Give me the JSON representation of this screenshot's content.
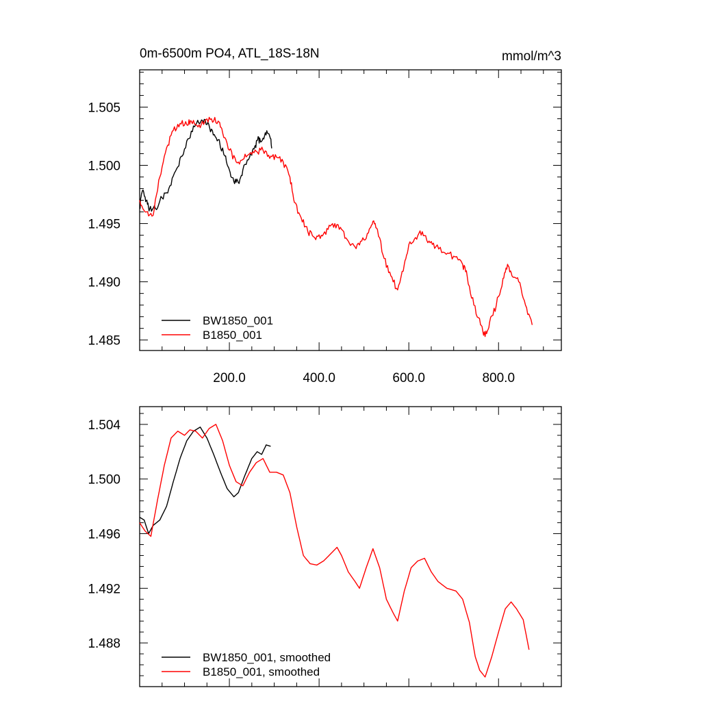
{
  "title_left": "0m-6500m PO4, ATL_18S-18N",
  "title_right": "mmol/m^3",
  "colors": {
    "bw": "#000000",
    "b": "#ff0000",
    "frame": "#000000"
  },
  "chart_data": [
    {
      "type": "line",
      "xlim": [
        0,
        940
      ],
      "ylim": [
        1.4841,
        1.5082
      ],
      "y_ticks": [
        "1.505",
        "1.500",
        "1.495",
        "1.490",
        "1.485"
      ],
      "y_tick_values": [
        1.505,
        1.5,
        1.495,
        1.49,
        1.485
      ],
      "x_ticks": [
        "200.0",
        "400.0",
        "600.0",
        "800.0"
      ],
      "x_tick_values": [
        200,
        400,
        600,
        800
      ],
      "grid": false,
      "legend": "bottom-left",
      "series": [
        {
          "name": "BW1850_001",
          "color": "#000000",
          "points": [
            [
              0,
              1.4963
            ],
            [
              6,
              1.4978
            ],
            [
              15,
              1.497
            ],
            [
              22,
              1.4962
            ],
            [
              35,
              1.4963
            ],
            [
              50,
              1.4972
            ],
            [
              65,
              1.498
            ],
            [
              80,
              1.4995
            ],
            [
              95,
              1.5008
            ],
            [
              110,
              1.5023
            ],
            [
              125,
              1.5035
            ],
            [
              138,
              1.5039
            ],
            [
              150,
              1.5035
            ],
            [
              162,
              1.503
            ],
            [
              175,
              1.5022
            ],
            [
              190,
              1.5008
            ],
            [
              200,
              1.4996
            ],
            [
              210,
              1.4986
            ],
            [
              220,
              1.4985
            ],
            [
              230,
              1.4996
            ],
            [
              245,
              1.5007
            ],
            [
              255,
              1.5014
            ],
            [
              263,
              1.5022
            ],
            [
              270,
              1.502
            ],
            [
              280,
              1.5028
            ],
            [
              290,
              1.5025
            ],
            [
              295,
              1.5015
            ]
          ]
        },
        {
          "name": "B1850_001",
          "color": "#ff0000",
          "points": [
            [
              0,
              1.497
            ],
            [
              15,
              1.496
            ],
            [
              30,
              1.4957
            ],
            [
              45,
              1.499
            ],
            [
              60,
              1.5015
            ],
            [
              75,
              1.503
            ],
            [
              90,
              1.5036
            ],
            [
              105,
              1.5035
            ],
            [
              115,
              1.5038
            ],
            [
              130,
              1.5033
            ],
            [
              145,
              1.5037
            ],
            [
              160,
              1.504
            ],
            [
              175,
              1.5038
            ],
            [
              185,
              1.5028
            ],
            [
              200,
              1.5013
            ],
            [
              215,
              1.5003
            ],
            [
              230,
              1.5005
            ],
            [
              245,
              1.501
            ],
            [
              260,
              1.5012
            ],
            [
              275,
              1.5013
            ],
            [
              290,
              1.5006
            ],
            [
              305,
              1.5007
            ],
            [
              320,
              1.5003
            ],
            [
              335,
              1.499
            ],
            [
              345,
              1.4968
            ],
            [
              360,
              1.4955
            ],
            [
              375,
              1.4943
            ],
            [
              390,
              1.4938
            ],
            [
              405,
              1.494
            ],
            [
              420,
              1.4945
            ],
            [
              435,
              1.495
            ],
            [
              450,
              1.4945
            ],
            [
              465,
              1.4935
            ],
            [
              480,
              1.493
            ],
            [
              495,
              1.4935
            ],
            [
              510,
              1.4942
            ],
            [
              520,
              1.4952
            ],
            [
              530,
              1.4945
            ],
            [
              545,
              1.492
            ],
            [
              560,
              1.4905
            ],
            [
              575,
              1.4893
            ],
            [
              590,
              1.4915
            ],
            [
              600,
              1.4932
            ],
            [
              615,
              1.4938
            ],
            [
              630,
              1.4943
            ],
            [
              645,
              1.4935
            ],
            [
              660,
              1.493
            ],
            [
              680,
              1.4925
            ],
            [
              700,
              1.4922
            ],
            [
              720,
              1.4915
            ],
            [
              730,
              1.4905
            ],
            [
              745,
              1.488
            ],
            [
              760,
              1.4863
            ],
            [
              770,
              1.4853
            ],
            [
              780,
              1.4865
            ],
            [
              795,
              1.488
            ],
            [
              810,
              1.4903
            ],
            [
              820,
              1.4915
            ],
            [
              830,
              1.4905
            ],
            [
              845,
              1.49
            ],
            [
              860,
              1.488
            ],
            [
              875,
              1.4863
            ]
          ]
        }
      ]
    },
    {
      "type": "line",
      "xlim": [
        0,
        940
      ],
      "ylim": [
        1.4848,
        1.5053
      ],
      "y_ticks": [
        "1.504",
        "1.500",
        "1.496",
        "1.492",
        "1.488"
      ],
      "y_tick_values": [
        1.504,
        1.5,
        1.496,
        1.492,
        1.488
      ],
      "x_tick_values": [
        200,
        400,
        600,
        800
      ],
      "grid": false,
      "legend": "bottom-left",
      "series": [
        {
          "name": "BW1850_001, smoothed",
          "color": "#000000",
          "points": [
            [
              0,
              1.4972
            ],
            [
              10,
              1.497
            ],
            [
              20,
              1.496
            ],
            [
              30,
              1.4966
            ],
            [
              45,
              1.497
            ],
            [
              60,
              1.498
            ],
            [
              75,
              1.4998
            ],
            [
              90,
              1.5015
            ],
            [
              105,
              1.5028
            ],
            [
              120,
              1.5035
            ],
            [
              135,
              1.5038
            ],
            [
              150,
              1.503
            ],
            [
              165,
              1.5018
            ],
            [
              180,
              1.5005
            ],
            [
              195,
              1.4993
            ],
            [
              210,
              1.4987
            ],
            [
              220,
              1.499
            ],
            [
              235,
              1.5003
            ],
            [
              250,
              1.5015
            ],
            [
              262,
              1.502
            ],
            [
              272,
              1.5018
            ],
            [
              282,
              1.5025
            ],
            [
              292,
              1.5024
            ]
          ]
        },
        {
          "name": "B1850_001, smoothed",
          "color": "#ff0000",
          "points": [
            [
              0,
              1.4968
            ],
            [
              12,
              1.4962
            ],
            [
              25,
              1.4958
            ],
            [
              40,
              1.4985
            ],
            [
              55,
              1.501
            ],
            [
              70,
              1.503
            ],
            [
              85,
              1.5035
            ],
            [
              100,
              1.5032
            ],
            [
              112,
              1.5036
            ],
            [
              125,
              1.5035
            ],
            [
              140,
              1.503
            ],
            [
              155,
              1.5037
            ],
            [
              170,
              1.504
            ],
            [
              185,
              1.5028
            ],
            [
              200,
              1.501
            ],
            [
              215,
              1.4998
            ],
            [
              230,
              1.4995
            ],
            [
              245,
              1.5005
            ],
            [
              260,
              1.5012
            ],
            [
              275,
              1.5015
            ],
            [
              290,
              1.5005
            ],
            [
              305,
              1.5005
            ],
            [
              320,
              1.5003
            ],
            [
              335,
              1.499
            ],
            [
              350,
              1.4965
            ],
            [
              365,
              1.4944
            ],
            [
              380,
              1.4938
            ],
            [
              395,
              1.4937
            ],
            [
              410,
              1.494
            ],
            [
              425,
              1.4945
            ],
            [
              440,
              1.495
            ],
            [
              450,
              1.4944
            ],
            [
              465,
              1.4932
            ],
            [
              480,
              1.4925
            ],
            [
              490,
              1.492
            ],
            [
              505,
              1.4935
            ],
            [
              520,
              1.4949
            ],
            [
              535,
              1.4935
            ],
            [
              550,
              1.4912
            ],
            [
              565,
              1.4902
            ],
            [
              575,
              1.4896
            ],
            [
              590,
              1.4918
            ],
            [
              605,
              1.4935
            ],
            [
              620,
              1.494
            ],
            [
              635,
              1.4942
            ],
            [
              650,
              1.4932
            ],
            [
              665,
              1.4925
            ],
            [
              685,
              1.492
            ],
            [
              705,
              1.4918
            ],
            [
              720,
              1.4912
            ],
            [
              735,
              1.4895
            ],
            [
              748,
              1.487
            ],
            [
              758,
              1.486
            ],
            [
              770,
              1.4855
            ],
            [
              785,
              1.487
            ],
            [
              800,
              1.4888
            ],
            [
              815,
              1.4905
            ],
            [
              828,
              1.491
            ],
            [
              840,
              1.4905
            ],
            [
              855,
              1.4897
            ],
            [
              868,
              1.4875
            ]
          ]
        }
      ]
    }
  ]
}
